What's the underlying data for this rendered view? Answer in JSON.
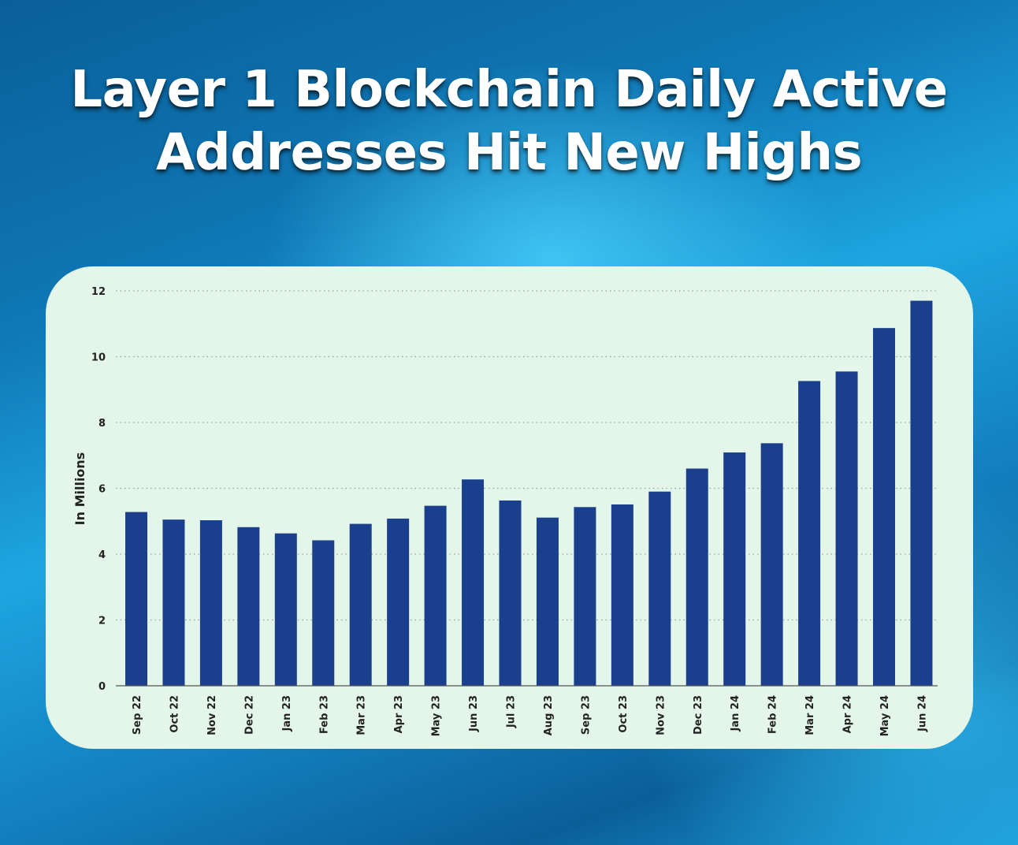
{
  "title": {
    "line1": "Layer 1 Blockchain Daily Active",
    "line2": "Addresses Hit New Highs"
  },
  "colors": {
    "bar": "#1a3f8c",
    "panel": "#e3f6e9",
    "title": "#ffffff",
    "grid": "#9aa5a0"
  },
  "chart_data": {
    "type": "bar",
    "ylabel": "In Millions",
    "xlabel": "",
    "ylim": [
      0,
      12
    ],
    "yticks": [
      0,
      2,
      4,
      6,
      8,
      10,
      12
    ],
    "grid": "horizontal dotted",
    "categories": [
      "Sep 22",
      "Oct 22",
      "Nov 22",
      "Dec 22",
      "Jan 23",
      "Feb 23",
      "Mar 23",
      "Apr 23",
      "May 23",
      "Jun 23",
      "Jul 23",
      "Aug 23",
      "Sep 23",
      "Oct 23",
      "Nov 23",
      "Dec 23",
      "Jan 24",
      "Feb 24",
      "Mar 24",
      "Apr 24",
      "May 24",
      "Jun 24"
    ],
    "values": [
      5.28,
      5.05,
      5.03,
      4.82,
      4.63,
      4.42,
      4.92,
      5.08,
      5.47,
      6.27,
      5.63,
      5.11,
      5.43,
      5.51,
      5.9,
      6.6,
      7.09,
      7.37,
      9.26,
      9.55,
      10.87,
      11.7
    ]
  }
}
